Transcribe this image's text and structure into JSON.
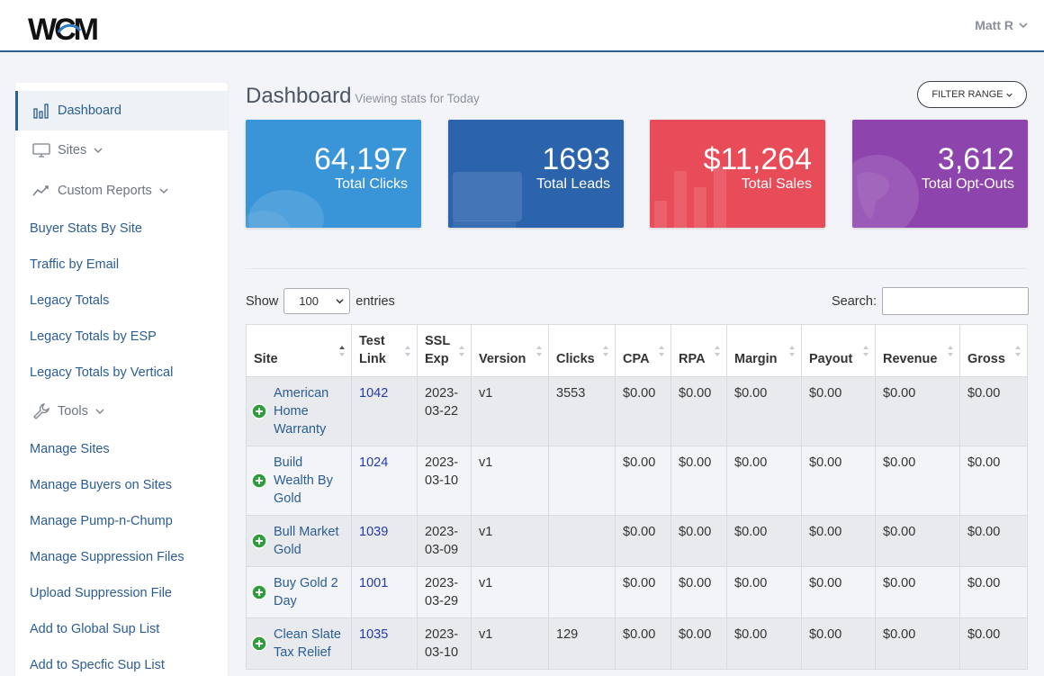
{
  "header": {
    "logo_text": "WCM",
    "user_name": "Matt R"
  },
  "sidebar": {
    "dashboard": "Dashboard",
    "sites": "Sites",
    "custom_reports": "Custom Reports",
    "links_a": [
      "Buyer Stats By Site",
      "Traffic by Email",
      "Legacy Totals",
      "Legacy Totals by ESP",
      "Legacy Totals by Vertical"
    ],
    "tools": "Tools",
    "links_b": [
      "Manage Sites",
      "Manage Buyers on Sites",
      "Manage Pump-n-Chump",
      "Manage Suppression Files",
      "Upload Suppression File",
      "Add to Global Sup List",
      "Add to Specfic Sup List"
    ]
  },
  "main": {
    "title": "Dashboard",
    "subtitle": "Viewing stats for Today",
    "filter_label": "FILTER RANGE",
    "stats": [
      {
        "value": "64,197",
        "label": "Total Clicks",
        "color": "#3a94d8"
      },
      {
        "value": "1693",
        "label": "Total Leads",
        "color": "#2b63ad"
      },
      {
        "value": "$11,264",
        "label": "Total Sales",
        "color": "#e74c58"
      },
      {
        "value": "3,612",
        "label": "Total Opt-Outs",
        "color": "#8e44ad"
      }
    ],
    "show_label": "Show",
    "entries_value": "100",
    "entries_label": "entries",
    "search_label": "Search:",
    "search_value": ""
  },
  "table": {
    "columns": [
      "Site",
      "Test Link",
      "SSL Exp",
      "Version",
      "Clicks",
      "CPA",
      "RPA",
      "Margin",
      "Payout",
      "Revenue",
      "Gross"
    ],
    "rows": [
      {
        "site": "American Home Warranty",
        "test_link": "1042",
        "ssl_exp": "2023-03-22",
        "version": "v1",
        "clicks": "3553",
        "cpa": "$0.00",
        "rpa": "$0.00",
        "margin": "$0.00",
        "payout": "$0.00",
        "revenue": "$0.00",
        "gross": "$0.00"
      },
      {
        "site": "Build Wealth By Gold",
        "test_link": "1024",
        "ssl_exp": "2023-03-10",
        "version": "v1",
        "clicks": "",
        "cpa": "$0.00",
        "rpa": "$0.00",
        "margin": "$0.00",
        "payout": "$0.00",
        "revenue": "$0.00",
        "gross": "$0.00"
      },
      {
        "site": "Bull Market Gold",
        "test_link": "1039",
        "ssl_exp": "2023-03-09",
        "version": "v1",
        "clicks": "",
        "cpa": "$0.00",
        "rpa": "$0.00",
        "margin": "$0.00",
        "payout": "$0.00",
        "revenue": "$0.00",
        "gross": "$0.00"
      },
      {
        "site": "Buy Gold 2 Day",
        "test_link": "1001",
        "ssl_exp": "2023-03-29",
        "version": "v1",
        "clicks": "",
        "cpa": "$0.00",
        "rpa": "$0.00",
        "margin": "$0.00",
        "payout": "$0.00",
        "revenue": "$0.00",
        "gross": "$0.00"
      },
      {
        "site": "Clean Slate Tax Relief",
        "test_link": "1035",
        "ssl_exp": "2023-03-10",
        "version": "v1",
        "clicks": "129",
        "cpa": "$0.00",
        "rpa": "$0.00",
        "margin": "$0.00",
        "payout": "$0.00",
        "revenue": "$0.00",
        "gross": "$0.00"
      }
    ]
  }
}
